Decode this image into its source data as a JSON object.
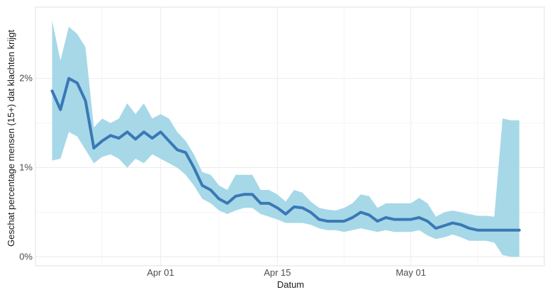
{
  "chart_data": {
    "type": "line",
    "title": "",
    "xlabel": "Datum",
    "ylabel": "Geschat percentage mensen (15+) dat klachten krijgt",
    "x_ticks": [
      {
        "date": "2020-04-01",
        "label": "Apr 01"
      },
      {
        "date": "2020-04-15",
        "label": "Apr 15"
      },
      {
        "date": "2020-05-01",
        "label": "May 01"
      }
    ],
    "y_ticks": [
      {
        "value": 0,
        "label": "0%"
      },
      {
        "value": 1,
        "label": "1%"
      },
      {
        "value": 2,
        "label": "2%"
      }
    ],
    "xlim": [
      "2020-03-17",
      "2020-05-17"
    ],
    "ylim": [
      -0.1,
      2.8
    ],
    "grid": true,
    "line_color": "#3a78b5",
    "band_color": "#a6d8e8",
    "series": [
      {
        "x": [
          "2020-03-19",
          "2020-03-20",
          "2020-03-21",
          "2020-03-22",
          "2020-03-23",
          "2020-03-24",
          "2020-03-25",
          "2020-03-26",
          "2020-03-27",
          "2020-03-28",
          "2020-03-29",
          "2020-03-30",
          "2020-03-31",
          "2020-04-01",
          "2020-04-02",
          "2020-04-03",
          "2020-04-04",
          "2020-04-05",
          "2020-04-06",
          "2020-04-07",
          "2020-04-08",
          "2020-04-09",
          "2020-04-10",
          "2020-04-11",
          "2020-04-12",
          "2020-04-13",
          "2020-04-14",
          "2020-04-15",
          "2020-04-16",
          "2020-04-17",
          "2020-04-18",
          "2020-04-19",
          "2020-04-20",
          "2020-04-21",
          "2020-04-22",
          "2020-04-23",
          "2020-04-24",
          "2020-04-25",
          "2020-04-26",
          "2020-04-27",
          "2020-04-28",
          "2020-04-29",
          "2020-04-30",
          "2020-05-01",
          "2020-05-02",
          "2020-05-03",
          "2020-05-04",
          "2020-05-05",
          "2020-05-06",
          "2020-05-07",
          "2020-05-08",
          "2020-05-09",
          "2020-05-10",
          "2020-05-11",
          "2020-05-12",
          "2020-05-13",
          "2020-05-14"
        ],
        "y": [
          1.86,
          1.65,
          2.0,
          1.95,
          1.75,
          1.22,
          1.3,
          1.36,
          1.33,
          1.4,
          1.32,
          1.4,
          1.33,
          1.4,
          1.3,
          1.2,
          1.17,
          1.0,
          0.8,
          0.75,
          0.65,
          0.6,
          0.68,
          0.7,
          0.7,
          0.6,
          0.6,
          0.55,
          0.48,
          0.56,
          0.55,
          0.5,
          0.42,
          0.4,
          0.4,
          0.4,
          0.44,
          0.5,
          0.47,
          0.4,
          0.44,
          0.42,
          0.42,
          0.42,
          0.44,
          0.4,
          0.32,
          0.35,
          0.38,
          0.36,
          0.32,
          0.3,
          0.3,
          0.3,
          0.3,
          0.3,
          0.3
        ],
        "lower": [
          1.08,
          1.1,
          1.4,
          1.35,
          1.2,
          1.05,
          1.12,
          1.15,
          1.1,
          1.0,
          1.1,
          1.05,
          1.15,
          1.1,
          1.05,
          1.0,
          0.92,
          0.8,
          0.65,
          0.6,
          0.52,
          0.48,
          0.52,
          0.55,
          0.55,
          0.48,
          0.45,
          0.42,
          0.38,
          0.38,
          0.38,
          0.36,
          0.32,
          0.3,
          0.3,
          0.28,
          0.3,
          0.32,
          0.3,
          0.28,
          0.3,
          0.28,
          0.28,
          0.28,
          0.3,
          0.24,
          0.2,
          0.22,
          0.25,
          0.22,
          0.18,
          0.18,
          0.18,
          0.16,
          0.02,
          0.0,
          0.0
        ],
        "upper": [
          2.65,
          2.2,
          2.58,
          2.5,
          2.35,
          1.45,
          1.55,
          1.5,
          1.55,
          1.72,
          1.6,
          1.72,
          1.55,
          1.6,
          1.55,
          1.4,
          1.3,
          1.15,
          0.95,
          0.92,
          0.8,
          0.75,
          0.92,
          0.92,
          0.92,
          0.75,
          0.75,
          0.7,
          0.62,
          0.75,
          0.72,
          0.62,
          0.55,
          0.53,
          0.52,
          0.55,
          0.6,
          0.7,
          0.68,
          0.55,
          0.6,
          0.6,
          0.6,
          0.6,
          0.66,
          0.6,
          0.45,
          0.5,
          0.52,
          0.5,
          0.48,
          0.46,
          0.46,
          0.45,
          1.55,
          1.53,
          1.53
        ]
      }
    ]
  }
}
